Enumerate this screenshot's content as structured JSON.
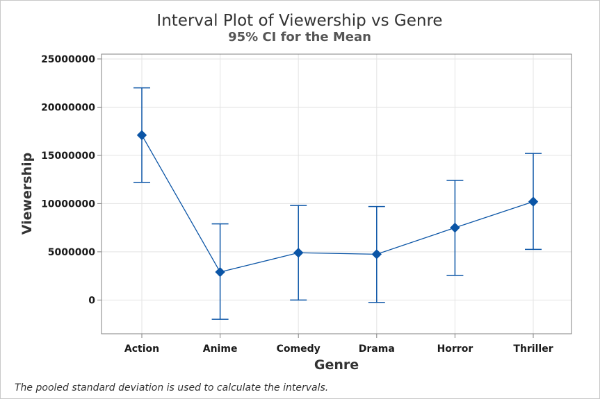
{
  "chart_data": {
    "type": "interval",
    "title": "Interval Plot of Viewership vs Genre",
    "subtitle": "95% CI for the Mean",
    "xlabel": "Genre",
    "ylabel": "Viewership",
    "footnote": "The pooled standard deviation is used to calculate the intervals.",
    "categories": [
      "Action",
      "Anime",
      "Comedy",
      "Drama",
      "Horror",
      "Thriller"
    ],
    "mean": [
      17100000,
      2900000,
      4900000,
      4750000,
      7500000,
      10200000
    ],
    "lower": [
      12200000,
      -2000000,
      0,
      -250000,
      2550000,
      5250000
    ],
    "upper": [
      22000000,
      7900000,
      9800000,
      9700000,
      12400000,
      15200000
    ],
    "ylim": [
      -3500000,
      25500000
    ],
    "yticks": [
      0,
      5000000,
      10000000,
      15000000,
      20000000,
      25000000
    ],
    "ytick_labels": [
      "0",
      "5000000",
      "10000000",
      "15000000",
      "20000000",
      "25000000"
    ],
    "grid": true,
    "colors": {
      "series": "#0b55a6",
      "grid": "#e3e3e3",
      "frame": "#808080"
    }
  }
}
